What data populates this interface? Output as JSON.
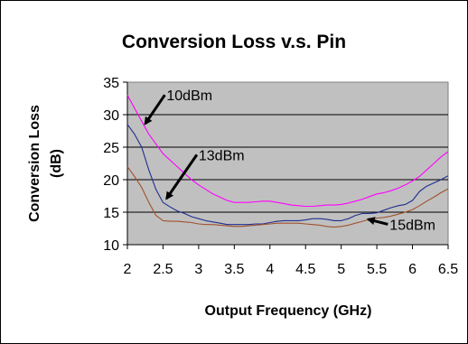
{
  "chart_data": {
    "type": "line",
    "title": "Conversion Loss v.s. Pin",
    "xlabel": "Output Frequency (GHz)",
    "ylabel_line1": "Conversion Loss",
    "ylabel_line2": "(dB)",
    "xlim": [
      2,
      6.5
    ],
    "ylim": [
      10,
      35
    ],
    "xticks": [
      "2",
      "2.5",
      "3",
      "3.5",
      "4",
      "4.5",
      "5",
      "5.5",
      "6",
      "6.5"
    ],
    "yticks": [
      "10",
      "15",
      "20",
      "25",
      "30",
      "35"
    ],
    "grid": "horizontal",
    "plot_background": "#c0c0c0",
    "series": [
      {
        "name": "10dBm",
        "color": "#ff00ff",
        "x": [
          2,
          2.1,
          2.2,
          2.3,
          2.4,
          2.5,
          2.6,
          2.7,
          2.8,
          2.9,
          3,
          3.1,
          3.2,
          3.3,
          3.4,
          3.5,
          3.6,
          3.7,
          3.8,
          3.9,
          4,
          4.1,
          4.2,
          4.3,
          4.4,
          4.5,
          4.6,
          4.7,
          4.8,
          4.9,
          5,
          5.1,
          5.2,
          5.3,
          5.4,
          5.5,
          5.6,
          5.7,
          5.8,
          5.9,
          6,
          6.1,
          6.2,
          6.3,
          6.4,
          6.5
        ],
        "values": [
          33,
          31,
          29,
          27,
          25.5,
          24,
          23,
          22,
          21,
          20,
          19.2,
          18.5,
          17.8,
          17.3,
          16.8,
          16.5,
          16.5,
          16.5,
          16.6,
          16.7,
          16.7,
          16.5,
          16.3,
          16.1,
          16,
          15.9,
          15.9,
          16,
          16.1,
          16.1,
          16.2,
          16.4,
          16.7,
          17,
          17.4,
          17.8,
          18,
          18.3,
          18.7,
          19.2,
          19.8,
          20.5,
          21.5,
          22.5,
          23.5,
          24.3
        ]
      },
      {
        "name": "13dBm",
        "color": "#1f2f8f",
        "x": [
          2,
          2.1,
          2.2,
          2.3,
          2.4,
          2.5,
          2.6,
          2.7,
          2.8,
          2.9,
          3,
          3.1,
          3.2,
          3.3,
          3.4,
          3.5,
          3.6,
          3.7,
          3.8,
          3.9,
          4,
          4.1,
          4.2,
          4.3,
          4.4,
          4.5,
          4.6,
          4.7,
          4.8,
          4.9,
          5,
          5.1,
          5.2,
          5.3,
          5.4,
          5.5,
          5.6,
          5.7,
          5.8,
          5.9,
          6,
          6.1,
          6.2,
          6.3,
          6.4,
          6.5
        ],
        "values": [
          28.5,
          27,
          25,
          21.5,
          18.5,
          16.5,
          15.8,
          15.2,
          14.8,
          14.3,
          14,
          13.7,
          13.5,
          13.3,
          13.1,
          13.1,
          13.1,
          13.1,
          13.2,
          13.2,
          13.4,
          13.6,
          13.7,
          13.7,
          13.7,
          13.8,
          14,
          14,
          13.9,
          13.7,
          13.7,
          14,
          14.5,
          14.8,
          14.8,
          14.9,
          15.3,
          15.7,
          16,
          16.2,
          16.8,
          18.2,
          19,
          19.5,
          20,
          20.6
        ]
      },
      {
        "name": "15dBm",
        "color": "#a0522d",
        "x": [
          2,
          2.1,
          2.2,
          2.3,
          2.4,
          2.5,
          2.6,
          2.7,
          2.8,
          2.9,
          3,
          3.1,
          3.2,
          3.3,
          3.4,
          3.5,
          3.6,
          3.7,
          3.8,
          3.9,
          4,
          4.1,
          4.2,
          4.3,
          4.4,
          4.5,
          4.6,
          4.7,
          4.8,
          4.9,
          5,
          5.1,
          5.2,
          5.3,
          5.4,
          5.5,
          5.6,
          5.7,
          5.8,
          5.9,
          6,
          6.1,
          6.2,
          6.3,
          6.4,
          6.5
        ],
        "values": [
          22,
          20.5,
          18.8,
          16.5,
          14.5,
          13.7,
          13.6,
          13.6,
          13.5,
          13.4,
          13.2,
          13.1,
          13.1,
          13,
          12.9,
          12.8,
          12.8,
          12.9,
          13,
          13.1,
          13.2,
          13.3,
          13.3,
          13.3,
          13.3,
          13.2,
          13.1,
          13,
          12.8,
          12.7,
          12.8,
          13,
          13.3,
          13.6,
          13.9,
          14.1,
          14.2,
          14.4,
          14.7,
          15,
          15.4,
          16,
          16.7,
          17.3,
          18,
          18.6
        ]
      }
    ],
    "annotations": [
      {
        "text": "10dBm",
        "x": 2.55,
        "y": 32.2,
        "arrow_to": [
          2.25,
          28.6
        ]
      },
      {
        "text": "13dBm",
        "x": 3.0,
        "y": 23.0,
        "arrow_to": [
          2.55,
          17.1
        ]
      },
      {
        "text": "15dBm",
        "x": 5.68,
        "y": 12.3,
        "arrow_to": [
          5.38,
          13.9
        ]
      }
    ]
  }
}
